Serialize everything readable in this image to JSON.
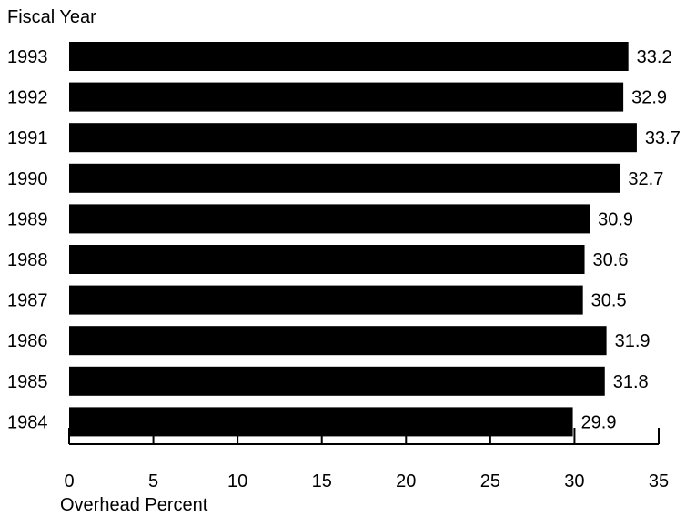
{
  "chart_data": {
    "type": "bar",
    "orientation": "horizontal",
    "ylabel": "Fiscal Year",
    "xlabel": "Overhead Percent",
    "categories": [
      "1993",
      "1992",
      "1991",
      "1990",
      "1989",
      "1988",
      "1987",
      "1986",
      "1985",
      "1984"
    ],
    "values": [
      33.2,
      32.9,
      33.7,
      32.7,
      30.9,
      30.6,
      30.5,
      31.9,
      31.8,
      29.9
    ],
    "value_labels": [
      "33.2",
      "32.9",
      "33.7",
      "32.7",
      "30.9",
      "30.6",
      "30.5",
      "31.9",
      "31.8",
      "29.9"
    ],
    "xlim": [
      0,
      35
    ],
    "xticks": [
      0,
      5,
      10,
      15,
      20,
      25,
      30,
      35
    ],
    "xtick_labels": [
      "0",
      "5",
      "10",
      "15",
      "20",
      "25",
      "30",
      "35"
    ],
    "bar_color": "#000000",
    "grid": false,
    "legend": "none"
  }
}
